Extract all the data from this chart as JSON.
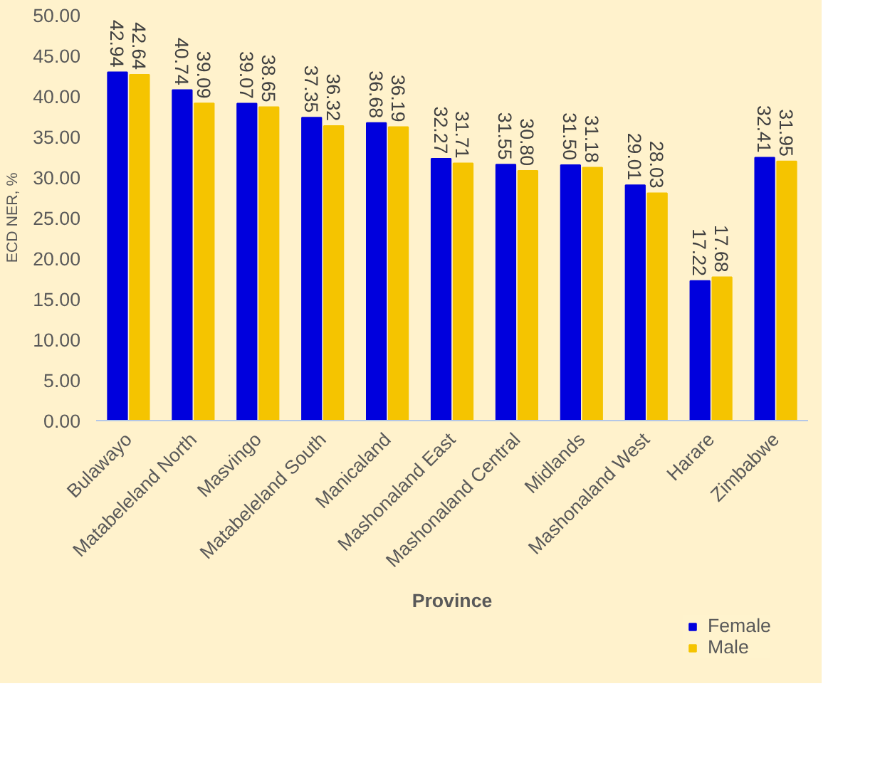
{
  "chart_data": {
    "type": "bar",
    "xlabel": "Province",
    "ylabel": "ECD NER, %",
    "categories": [
      "Bulawayo",
      "Matabeleland North",
      "Masvingo",
      "Matabeleland South",
      "Manicaland",
      "Mashonaland East",
      "Mashonaland Central",
      "Midlands",
      "Mashonaland West",
      "Harare",
      "Zimbabwe"
    ],
    "series": [
      {
        "name": "Female",
        "color": "#0000dd",
        "values": [
          42.94,
          40.74,
          39.07,
          37.35,
          36.68,
          32.27,
          31.55,
          31.5,
          29.01,
          17.22,
          32.41
        ],
        "value_labels": [
          "42.94",
          "40.74",
          "39.07",
          "37.35",
          "36.68",
          "32.27",
          "31.55",
          "31.50",
          "29.01",
          "17.22",
          "32.41"
        ]
      },
      {
        "name": "Male",
        "color": "#f5c400",
        "values": [
          42.64,
          39.09,
          38.65,
          36.32,
          36.19,
          31.71,
          30.8,
          31.18,
          28.03,
          17.68,
          31.95
        ],
        "value_labels": [
          "42.64",
          "39.09",
          "38.65",
          "36.32",
          "36.19",
          "31.71",
          "30.80",
          "31.18",
          "28.03",
          "17.68",
          "31.95"
        ]
      }
    ],
    "ylim": [
      0,
      50
    ],
    "yticks": [
      {
        "value": 0,
        "label": "0.00"
      },
      {
        "value": 5,
        "label": "5.00"
      },
      {
        "value": 10,
        "label": "10.00"
      },
      {
        "value": 15,
        "label": "15.00"
      },
      {
        "value": 20,
        "label": "20.00"
      },
      {
        "value": 25,
        "label": "25.00"
      },
      {
        "value": 30,
        "label": "30.00"
      },
      {
        "value": 35,
        "label": "35.00"
      },
      {
        "value": 40,
        "label": "40.00"
      },
      {
        "value": 45,
        "label": "45.00"
      },
      {
        "value": 50,
        "label": "50.00"
      }
    ],
    "grid": false,
    "legend": "bottom right"
  }
}
